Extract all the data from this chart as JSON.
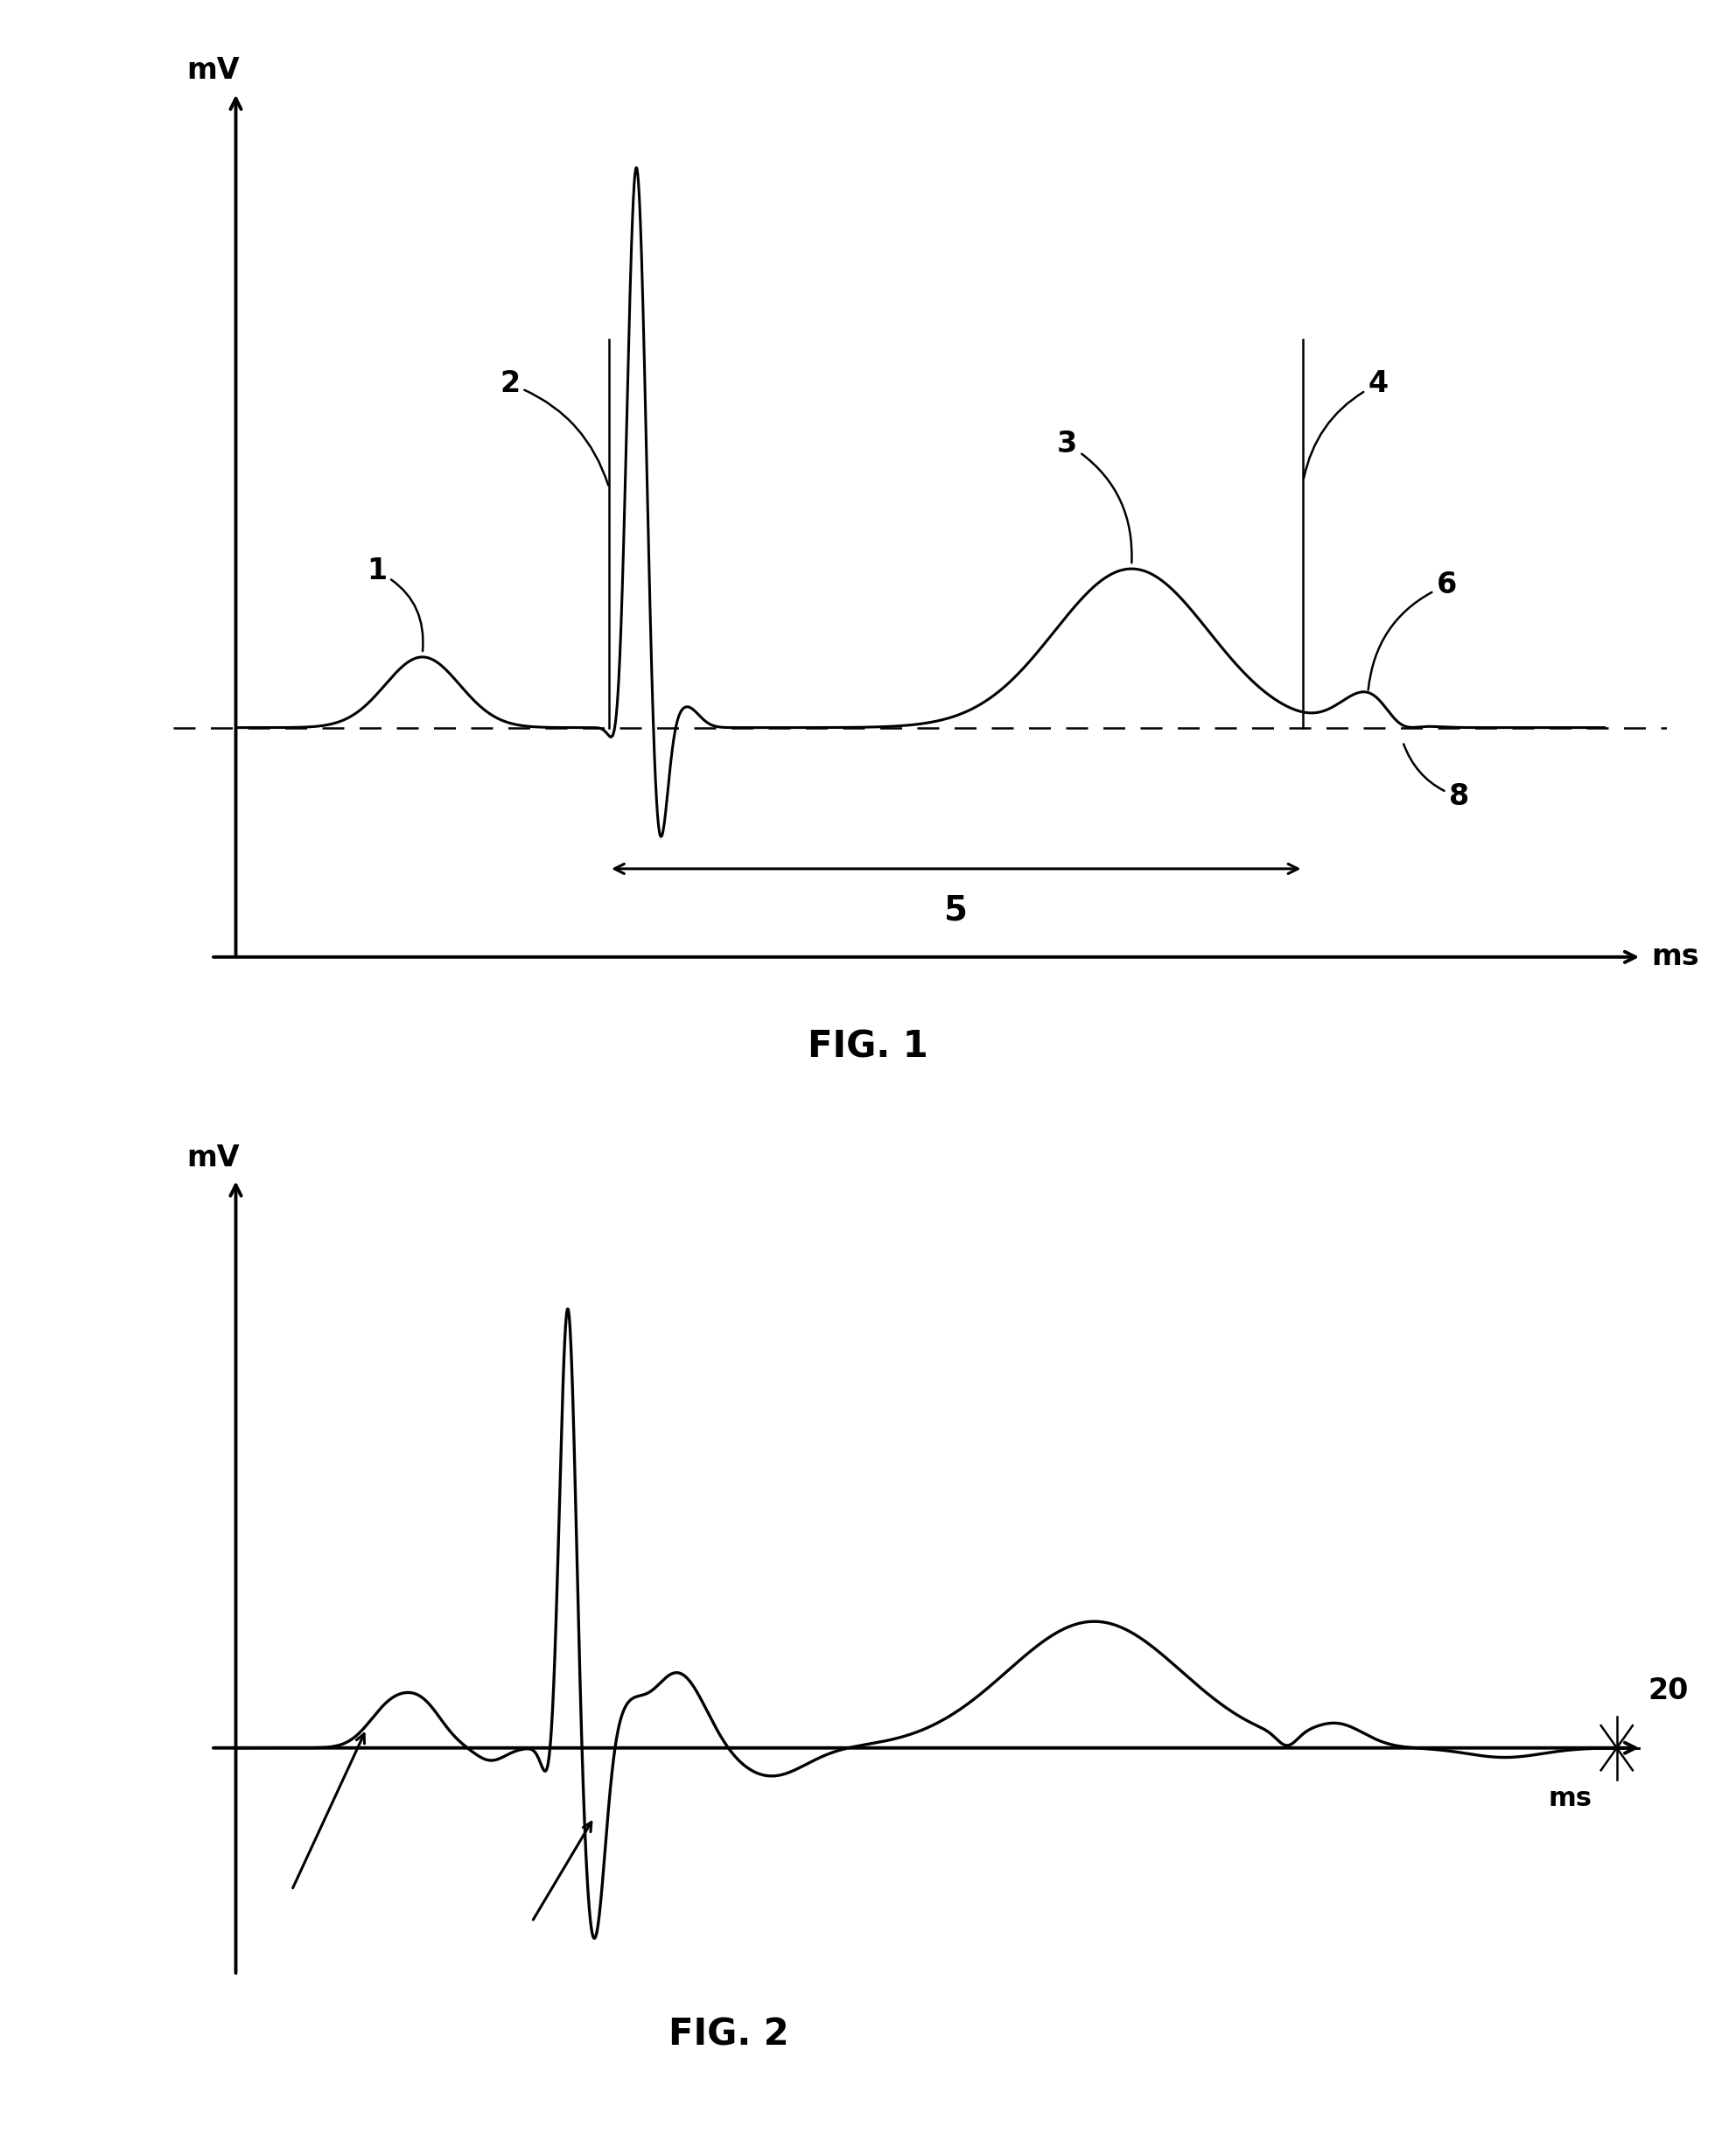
{
  "fig1_title": "FIG. 1",
  "fig2_title": "FIG. 2",
  "ylabel": "mV",
  "xlabel": "ms",
  "bg_color": "#ffffff",
  "line_color": "#000000",
  "label1": "1",
  "label2": "2",
  "label3": "3",
  "label4": "4",
  "label5": "5",
  "label6": "6",
  "label8": "8",
  "label20": "20",
  "fig1_axes": [
    0.1,
    0.535,
    0.86,
    0.43
  ],
  "fig2_axes": [
    0.1,
    0.055,
    0.86,
    0.4
  ],
  "fig1_xlim": [
    -0.5,
    11.5
  ],
  "fig1_ylim": [
    -0.75,
    1.85
  ],
  "fig2_xlim": [
    -0.5,
    11.5
  ],
  "fig2_ylim": [
    -0.85,
    1.85
  ]
}
